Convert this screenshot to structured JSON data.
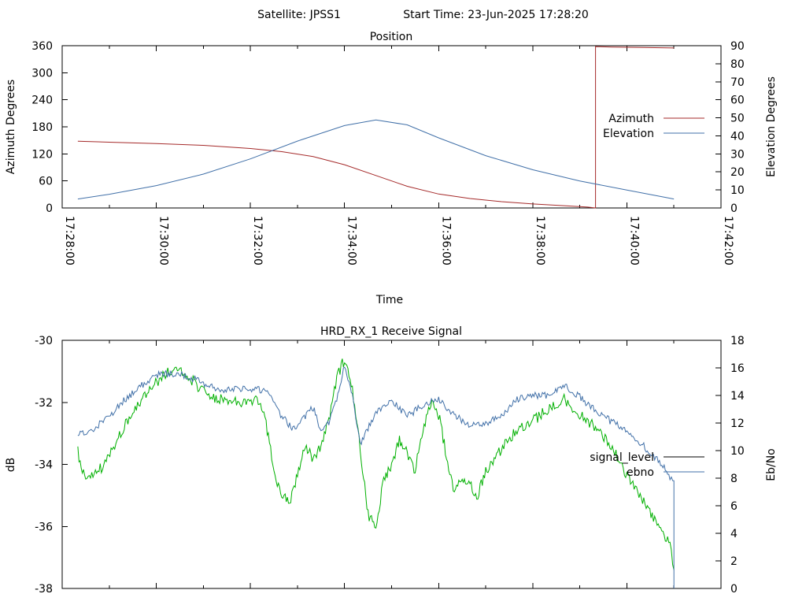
{
  "header": {
    "satellite_label": "Satellite: JPSS1",
    "start_time_label": "Start Time: 23-Jun-2025 17:28:20"
  },
  "chart_data": [
    {
      "type": "line",
      "title": "Position",
      "xlabel": "Time",
      "ylabel": "Azimuth Degrees",
      "y2label": "Elevation Degrees",
      "xlim": [
        "17:28:00",
        "17:42:00"
      ],
      "ylim": [
        0,
        360
      ],
      "y2lim": [
        0,
        90
      ],
      "xticks": [
        "17:28:00",
        "17:30:00",
        "17:32:00",
        "17:34:00",
        "17:36:00",
        "17:38:00",
        "17:40:00",
        "17:42:00"
      ],
      "yticks": [
        "0",
        "60",
        "120",
        "180",
        "240",
        "300",
        "360"
      ],
      "y2ticks": [
        "0",
        "10",
        "20",
        "30",
        "40",
        "50",
        "60",
        "70",
        "80",
        "90"
      ],
      "grid": false,
      "legend_position": "right",
      "series": [
        {
          "name": "Azimuth",
          "axis": "y",
          "color": "#a52a2a",
          "x": [
            "17:28:20",
            "17:29:00",
            "17:30:00",
            "17:31:00",
            "17:32:00",
            "17:32:40",
            "17:33:20",
            "17:34:00",
            "17:34:40",
            "17:35:20",
            "17:36:00",
            "17:36:40",
            "17:37:20",
            "17:38:00",
            "17:38:40",
            "17:39:10",
            "17:39:20",
            "17:39:20",
            "17:39:40",
            "17:40:20",
            "17:41:00"
          ],
          "values": [
            148,
            146,
            143,
            139,
            132,
            125,
            114,
            96,
            72,
            48,
            31,
            21,
            14,
            9,
            5,
            2,
            0,
            358,
            357,
            356,
            355
          ]
        },
        {
          "name": "Elevation",
          "axis": "y2",
          "color": "#4170a8",
          "x": [
            "17:28:20",
            "17:29:00",
            "17:30:00",
            "17:31:00",
            "17:32:00",
            "17:33:00",
            "17:34:00",
            "17:34:40",
            "17:35:20",
            "17:36:00",
            "17:37:00",
            "17:38:00",
            "17:39:00",
            "17:40:00",
            "17:41:00"
          ],
          "values": [
            5,
            7.6,
            12.4,
            18.8,
            27.2,
            37.1,
            45.7,
            48.8,
            46.1,
            38.9,
            29,
            21.2,
            15,
            9.9,
            5
          ]
        }
      ]
    },
    {
      "type": "line",
      "title": "HRD_RX_1 Receive Signal",
      "xlabel": "",
      "ylabel": "dB",
      "y2label": "Eb/No",
      "xlim": [
        "17:28:00",
        "17:42:00"
      ],
      "ylim": [
        -38,
        -30
      ],
      "y2lim": [
        0,
        18
      ],
      "yticks": [
        "-38",
        "-36",
        "-34",
        "-32",
        "-30"
      ],
      "y2ticks": [
        "0",
        "2",
        "4",
        "6",
        "8",
        "10",
        "12",
        "14",
        "16",
        "18"
      ],
      "grid": false,
      "legend_position": "right",
      "legend": [
        {
          "name": "signal_level",
          "color": "#000000"
        },
        {
          "name": "ebno",
          "color": "#4170a8"
        }
      ],
      "series": [
        {
          "name": "signal_level",
          "axis": "y",
          "color": "#00b000",
          "x": [
            "17:28:20",
            "17:28:30",
            "17:28:50",
            "17:29:10",
            "17:29:30",
            "17:29:50",
            "17:30:10",
            "17:30:30",
            "17:30:50",
            "17:31:10",
            "17:31:30",
            "17:31:50",
            "17:32:10",
            "17:32:20",
            "17:32:30",
            "17:32:40",
            "17:32:50",
            "17:33:00",
            "17:33:10",
            "17:33:20",
            "17:33:30",
            "17:33:40",
            "17:33:50",
            "17:34:00",
            "17:34:10",
            "17:34:20",
            "17:34:30",
            "17:34:40",
            "17:34:50",
            "17:35:00",
            "17:35:10",
            "17:35:20",
            "17:35:30",
            "17:35:40",
            "17:35:50",
            "17:36:00",
            "17:36:10",
            "17:36:20",
            "17:36:30",
            "17:36:40",
            "17:36:50",
            "17:37:00",
            "17:37:20",
            "17:37:40",
            "17:38:00",
            "17:38:20",
            "17:38:40",
            "17:39:00",
            "17:39:20",
            "17:39:40",
            "17:40:00",
            "17:40:20",
            "17:40:40",
            "17:40:55",
            "17:41:00"
          ],
          "values": [
            -33.6,
            -34.6,
            -34.1,
            -33.2,
            -32.3,
            -31.6,
            -31.1,
            -30.9,
            -31.4,
            -31.9,
            -31.9,
            -32.0,
            -31.9,
            -32.7,
            -34.2,
            -35.0,
            -35.3,
            -34.3,
            -33.4,
            -33.8,
            -33.4,
            -32.6,
            -31.2,
            -30.6,
            -31.6,
            -33.5,
            -35.6,
            -36.1,
            -34.4,
            -34.1,
            -33.2,
            -33.6,
            -34.2,
            -32.9,
            -32.0,
            -32.4,
            -33.7,
            -34.9,
            -34.4,
            -34.7,
            -35.0,
            -34.2,
            -33.5,
            -32.9,
            -32.6,
            -32.2,
            -31.9,
            -32.4,
            -32.8,
            -33.4,
            -34.4,
            -35.1,
            -36.0,
            -36.6,
            -37.4
          ]
        },
        {
          "name": "ebno",
          "axis": "y2",
          "color": "#4170a8",
          "x": [
            "17:28:20",
            "17:28:40",
            "17:29:00",
            "17:29:20",
            "17:29:40",
            "17:30:00",
            "17:30:20",
            "17:30:40",
            "17:31:00",
            "17:31:20",
            "17:31:40",
            "17:32:00",
            "17:32:20",
            "17:32:40",
            "17:32:50",
            "17:33:00",
            "17:33:10",
            "17:33:20",
            "17:33:30",
            "17:33:40",
            "17:33:50",
            "17:34:00",
            "17:34:10",
            "17:34:20",
            "17:34:30",
            "17:34:40",
            "17:35:00",
            "17:35:20",
            "17:35:40",
            "17:36:00",
            "17:36:20",
            "17:36:40",
            "17:37:00",
            "17:37:20",
            "17:37:40",
            "17:38:00",
            "17:38:20",
            "17:38:40",
            "17:39:00",
            "17:39:20",
            "17:39:40",
            "17:40:00",
            "17:40:20",
            "17:40:40",
            "17:40:55",
            "17:41:00",
            "17:41:00"
          ],
          "values": [
            11.2,
            11.6,
            12.5,
            13.7,
            14.7,
            15.5,
            15.6,
            15.4,
            14.9,
            14.4,
            14.5,
            14.5,
            14.4,
            12.5,
            11.8,
            11.6,
            12.5,
            13.1,
            11.5,
            12.0,
            13.8,
            16.1,
            14.0,
            10.5,
            11.6,
            12.9,
            13.6,
            12.5,
            13.3,
            13.8,
            12.6,
            11.8,
            12.0,
            12.5,
            13.7,
            14.0,
            14.0,
            14.7,
            13.9,
            12.9,
            12.1,
            11.5,
            10.4,
            9.3,
            8.1,
            7.8,
            0
          ]
        }
      ]
    }
  ]
}
